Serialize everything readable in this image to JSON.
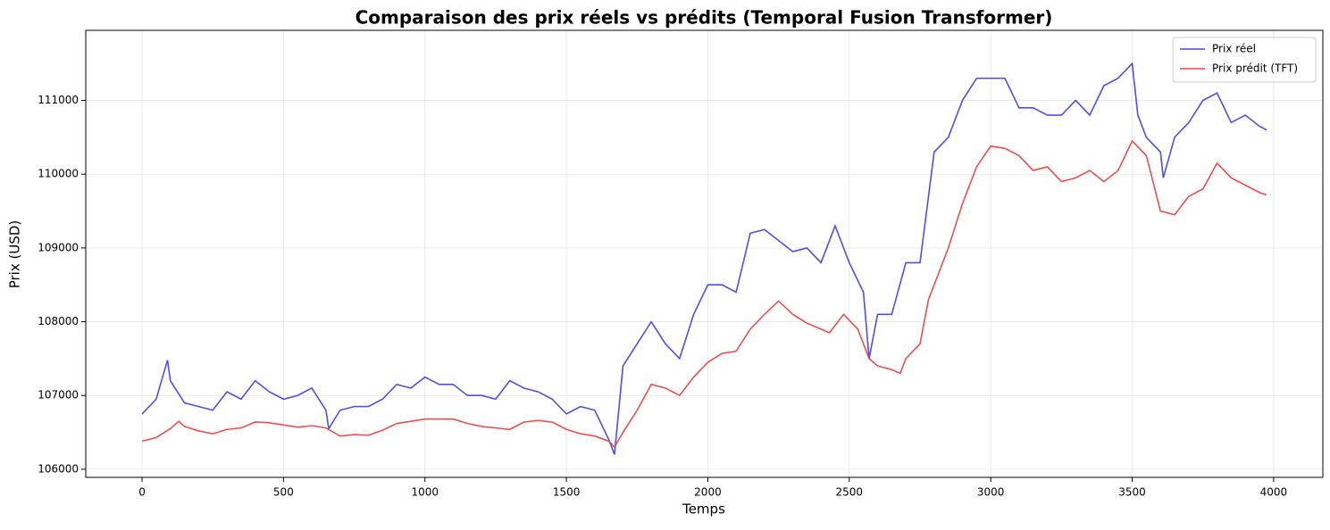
{
  "chart_data": {
    "type": "line",
    "title": "Comparaison des prix réels vs prédits (Temporal Fusion Transformer)",
    "x_label": "Temps",
    "y_label": "Prix (USD)",
    "xlim": [
      -199,
      4174
    ],
    "ylim": [
      105890,
      111950
    ],
    "xticks": [
      0,
      500,
      1000,
      1500,
      2000,
      2500,
      3000,
      3500,
      4000
    ],
    "yticks": [
      106000,
      107000,
      108000,
      109000,
      110000,
      111000
    ],
    "grid": true,
    "legend": "upper right",
    "series": [
      {
        "name": "Prix réel",
        "color": "#4444ee",
        "x": [
          0,
          50,
          90,
          100,
          150,
          200,
          250,
          300,
          350,
          400,
          450,
          500,
          550,
          600,
          650,
          660,
          700,
          750,
          800,
          850,
          900,
          950,
          1000,
          1050,
          1100,
          1150,
          1200,
          1250,
          1300,
          1350,
          1400,
          1450,
          1500,
          1550,
          1600,
          1650,
          1670,
          1700,
          1750,
          1800,
          1850,
          1900,
          1950,
          2000,
          2050,
          2100,
          2150,
          2200,
          2250,
          2300,
          2350,
          2400,
          2450,
          2500,
          2550,
          2570,
          2600,
          2650,
          2700,
          2750,
          2800,
          2850,
          2900,
          2950,
          3000,
          3050,
          3100,
          3150,
          3200,
          3250,
          3300,
          3350,
          3400,
          3450,
          3500,
          3520,
          3550,
          3600,
          3610,
          3650,
          3700,
          3750,
          3800,
          3850,
          3900,
          3950,
          3975
        ],
        "values": [
          106750,
          106950,
          107480,
          107200,
          106900,
          106850,
          106800,
          107050,
          106950,
          107200,
          107050,
          106950,
          107000,
          107100,
          106800,
          106550,
          106800,
          106850,
          106850,
          106950,
          107150,
          107100,
          107250,
          107150,
          107150,
          107000,
          107000,
          106950,
          107200,
          107100,
          107050,
          106950,
          106750,
          106850,
          106800,
          106400,
          106200,
          107400,
          107700,
          108000,
          107700,
          107500,
          108100,
          108500,
          108500,
          108400,
          109200,
          109250,
          109100,
          108950,
          109000,
          108800,
          109300,
          108800,
          108400,
          107500,
          108100,
          108100,
          108800,
          108800,
          110300,
          110500,
          111000,
          111300,
          111300,
          111300,
          110900,
          110900,
          110800,
          110800,
          111000,
          110800,
          111200,
          111300,
          111500,
          110800,
          110500,
          110300,
          109950,
          110500,
          110700,
          111000,
          111100,
          110700,
          110800,
          110650,
          110600
        ]
      },
      {
        "name": "Prix prédit (TFT)",
        "color": "#ee4444",
        "x": [
          0,
          50,
          100,
          130,
          150,
          200,
          250,
          300,
          350,
          400,
          450,
          500,
          550,
          600,
          650,
          700,
          750,
          800,
          850,
          900,
          950,
          1000,
          1050,
          1100,
          1150,
          1200,
          1250,
          1300,
          1350,
          1400,
          1450,
          1500,
          1550,
          1600,
          1650,
          1670,
          1700,
          1750,
          1800,
          1850,
          1900,
          1950,
          2000,
          2050,
          2100,
          2150,
          2200,
          2250,
          2300,
          2350,
          2400,
          2430,
          2480,
          2530,
          2570,
          2600,
          2650,
          2680,
          2700,
          2750,
          2780,
          2850,
          2900,
          2950,
          3000,
          3050,
          3100,
          3150,
          3200,
          3250,
          3300,
          3350,
          3400,
          3450,
          3500,
          3550,
          3600,
          3650,
          3700,
          3750,
          3800,
          3850,
          3900,
          3950,
          3975
        ],
        "values": [
          106380,
          106430,
          106550,
          106650,
          106580,
          106520,
          106480,
          106540,
          106560,
          106640,
          106630,
          106600,
          106570,
          106590,
          106560,
          106450,
          106470,
          106460,
          106530,
          106620,
          106650,
          106680,
          106680,
          106680,
          106620,
          106580,
          106560,
          106540,
          106640,
          106660,
          106640,
          106540,
          106480,
          106450,
          106380,
          106300,
          106500,
          106800,
          107150,
          107100,
          107000,
          107250,
          107450,
          107570,
          107600,
          107900,
          108100,
          108280,
          108100,
          107980,
          107900,
          107850,
          108100,
          107900,
          107500,
          107400,
          107350,
          107300,
          107500,
          107700,
          108300,
          109000,
          109600,
          110100,
          110380,
          110350,
          110250,
          110050,
          110100,
          109900,
          109950,
          110050,
          109900,
          110050,
          110450,
          110250,
          109500,
          109450,
          109700,
          109800,
          110150,
          109950,
          109850,
          109750,
          109720
        ]
      }
    ]
  }
}
